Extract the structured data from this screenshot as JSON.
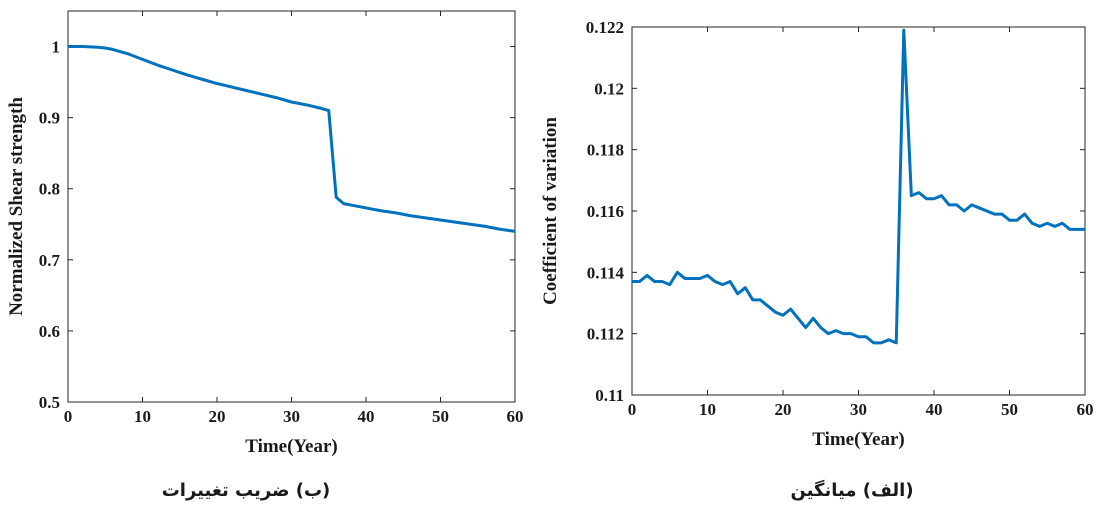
{
  "chart_data": [
    {
      "type": "line",
      "xlabel": "Time(Year)",
      "ylabel": "Normalized Shear strength",
      "caption": "(ب) ضریب تغییرات",
      "xlim": [
        0,
        60
      ],
      "xticks": [
        0,
        10,
        20,
        30,
        40,
        50,
        60
      ],
      "ylim": [
        0.5,
        1.05
      ],
      "yticks": [
        0.5,
        0.6,
        0.7,
        0.8,
        0.9,
        1
      ],
      "x": [
        0,
        2,
        4,
        5,
        6,
        7,
        8,
        9,
        10,
        12,
        14,
        16,
        18,
        20,
        22,
        24,
        26,
        28,
        30,
        32,
        34,
        35,
        36,
        37,
        38,
        40,
        42,
        44,
        46,
        48,
        50,
        52,
        54,
        56,
        58,
        60
      ],
      "series": [
        {
          "name": "Normalized Shear strength",
          "color": "#0072bd",
          "values": [
            1,
            1,
            0.999,
            0.998,
            0.996,
            0.993,
            0.99,
            0.986,
            0.982,
            0.974,
            0.967,
            0.96,
            0.954,
            0.948,
            0.943,
            0.938,
            0.933,
            0.928,
            0.922,
            0.918,
            0.913,
            0.91,
            0.788,
            0.779,
            0.777,
            0.773,
            0.769,
            0.766,
            0.762,
            0.759,
            0.756,
            0.753,
            0.75,
            0.747,
            0.743,
            0.74
          ]
        }
      ]
    },
    {
      "type": "line",
      "xlabel": "Time(Year)",
      "ylabel": "Coefficient of variation",
      "caption": "(الف) میانگین",
      "xlim": [
        0,
        60
      ],
      "xticks": [
        0,
        10,
        20,
        30,
        40,
        50,
        60
      ],
      "ylim": [
        0.11,
        0.122
      ],
      "yticks": [
        0.11,
        0.112,
        0.114,
        0.116,
        0.118,
        0.12,
        0.122
      ],
      "x": [
        0,
        1,
        2,
        3,
        4,
        5,
        6,
        7,
        8,
        9,
        10,
        11,
        12,
        13,
        14,
        15,
        16,
        17,
        18,
        19,
        20,
        21,
        22,
        23,
        24,
        25,
        26,
        27,
        28,
        29,
        30,
        31,
        32,
        33,
        34,
        35,
        36,
        37,
        38,
        39,
        40,
        41,
        42,
        43,
        44,
        45,
        46,
        47,
        48,
        49,
        50,
        51,
        52,
        53,
        54,
        55,
        56,
        57,
        58,
        59,
        60
      ],
      "series": [
        {
          "name": "Coefficient of variation",
          "color": "#0072bd",
          "values": [
            0.1137,
            0.1137,
            0.1139,
            0.1137,
            0.1137,
            0.1136,
            0.114,
            0.1138,
            0.1138,
            0.1138,
            0.1139,
            0.1137,
            0.1136,
            0.1137,
            0.1133,
            0.1135,
            0.1131,
            0.1131,
            0.1129,
            0.1127,
            0.1126,
            0.1128,
            0.1125,
            0.1122,
            0.1125,
            0.1122,
            0.112,
            0.1121,
            0.112,
            0.112,
            0.1119,
            0.1119,
            0.1117,
            0.1117,
            0.1118,
            0.1117,
            0.1219,
            0.1165,
            0.1166,
            0.1164,
            0.1164,
            0.1165,
            0.1162,
            0.1162,
            0.116,
            0.1162,
            0.1161,
            0.116,
            0.1159,
            0.1159,
            0.1157,
            0.1157,
            0.1159,
            0.1156,
            0.1155,
            0.1156,
            0.1155,
            0.1156,
            0.1154,
            0.1154,
            0.1154
          ]
        }
      ]
    }
  ]
}
